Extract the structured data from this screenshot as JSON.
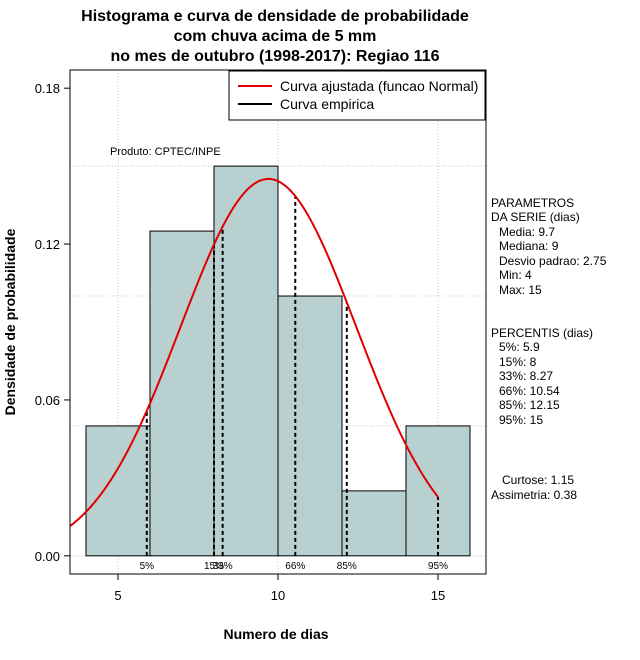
{
  "chart_data": {
    "type": "bar",
    "title_lines": [
      "Histograma e curva de densidade de probabilidade",
      "com chuva acima de 5 mm",
      "no mes de outubro (1998-2017): Regiao 116"
    ],
    "xlabel": "Numero de dias",
    "ylabel": "Densidade de probabilidade",
    "xlim": [
      3.5,
      16.5
    ],
    "ylim": [
      -0.007,
      0.187
    ],
    "xticks": [
      5,
      10,
      15
    ],
    "yticks": [
      0.0,
      0.06,
      0.12,
      0.18
    ],
    "ytick_labels": [
      "0.00",
      "0.06",
      "0.12",
      "0.18"
    ],
    "grid": true,
    "bins": [
      {
        "start": 4,
        "end": 6,
        "density": 0.05
      },
      {
        "start": 6,
        "end": 8,
        "density": 0.125
      },
      {
        "start": 8,
        "end": 10,
        "density": 0.15
      },
      {
        "start": 10,
        "end": 12,
        "density": 0.1
      },
      {
        "start": 12,
        "end": 14,
        "density": 0.025
      },
      {
        "start": 14,
        "end": 16,
        "density": 0.05
      }
    ],
    "normal_curve": {
      "mean": 9.7,
      "sd": 2.75,
      "x_from": 3.5,
      "x_to": 15,
      "color": "#e00000"
    },
    "percentiles": [
      {
        "label": "5%",
        "x": 5.9
      },
      {
        "label": "15%",
        "x": 8
      },
      {
        "label": "33%",
        "x": 8.27
      },
      {
        "label": "66%",
        "x": 10.54
      },
      {
        "label": "85%",
        "x": 12.15
      },
      {
        "label": "95%",
        "x": 15
      }
    ],
    "legend": [
      {
        "label": "Curva ajustada (funcao Normal)",
        "color": "#e00000"
      },
      {
        "label": "Curva empirica",
        "color": "#000000"
      }
    ],
    "bar_color": "#b8d0d0",
    "source_note": "Produto: CPTEC/INPE",
    "parametros": {
      "heading": [
        "PARAMETROS",
        "DA SERIE (dias)"
      ],
      "items": [
        "Media: 9.7",
        "Mediana: 9",
        "Desvio padrao: 2.75",
        "Min: 4",
        "Max: 15"
      ]
    },
    "percentis": {
      "heading": "PERCENTIS (dias)",
      "items": [
        "5%: 5.9",
        "15%: 8",
        "33%: 8.27",
        "66%: 10.54",
        "85%: 12.15",
        "95%: 15"
      ]
    },
    "stats": [
      "Curtose: 1.15",
      "Assimetria: 0.38"
    ]
  }
}
